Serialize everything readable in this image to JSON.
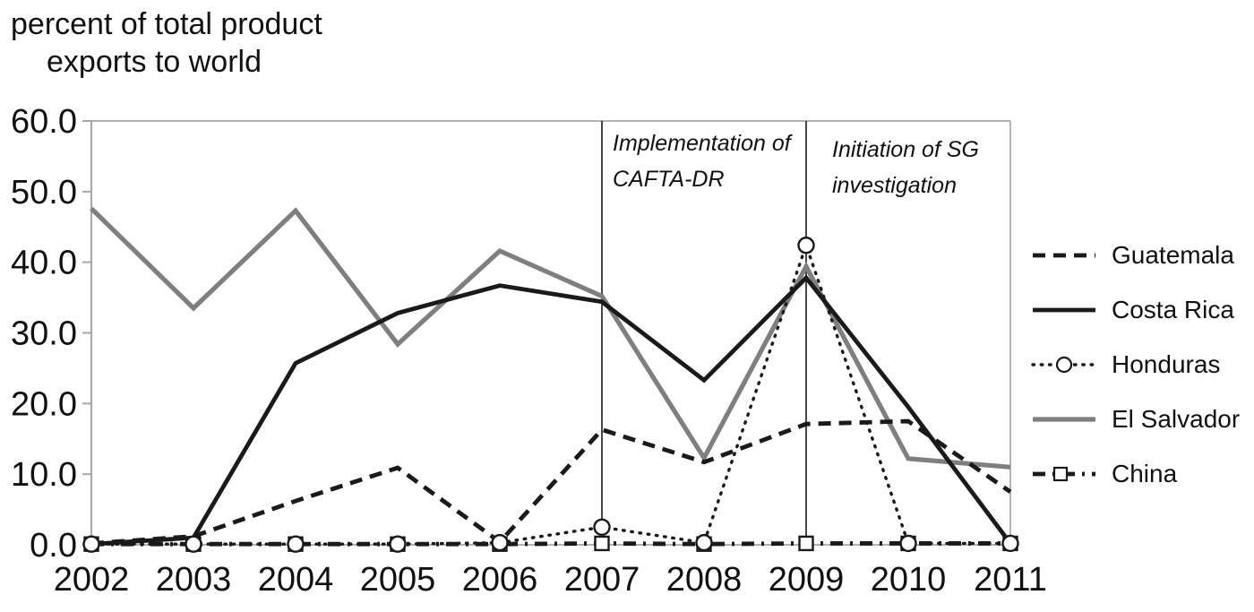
{
  "title": {
    "line1": "percent of total product",
    "line2": "exports to world"
  },
  "chart_data": {
    "type": "line",
    "x": [
      2002,
      2003,
      2004,
      2005,
      2006,
      2007,
      2008,
      2009,
      2010,
      2011
    ],
    "x_labels": [
      "2002",
      "2003",
      "2004",
      "2005",
      "2006",
      "2007",
      "2008",
      "2009",
      "2010",
      "2011"
    ],
    "y_ticks": [
      "0.0",
      "10.0",
      "20.0",
      "30.0",
      "40.0",
      "50.0",
      "60.0"
    ],
    "ylim": [
      0,
      60
    ],
    "grid": false,
    "legend_position": "right",
    "series": [
      {
        "name": "Guatemala",
        "color": "#1a1a1a",
        "style": "dashed",
        "marker": "none",
        "values": [
          0.2,
          1.2,
          6.2,
          10.9,
          0.4,
          16.3,
          11.7,
          17.1,
          17.5,
          7.5
        ]
      },
      {
        "name": "Costa Rica",
        "color": "#1a1a1a",
        "style": "solid",
        "marker": "none",
        "values": [
          0.1,
          1.0,
          25.7,
          32.8,
          36.7,
          34.4,
          23.3,
          37.8,
          19.5,
          0.2
        ]
      },
      {
        "name": "Honduras",
        "color": "#1a1a1a",
        "style": "dotted",
        "marker": "circle",
        "values": [
          0.1,
          0.1,
          0.1,
          0.1,
          0.3,
          2.5,
          0.3,
          42.4,
          0.2,
          0.2
        ]
      },
      {
        "name": "El Salvador",
        "color": "#7f7f7f",
        "style": "solid",
        "marker": "none",
        "values": [
          47.6,
          33.5,
          47.3,
          28.4,
          41.6,
          35.2,
          12.3,
          39.4,
          12.2,
          11.0
        ]
      },
      {
        "name": "China",
        "color": "#1a1a1a",
        "style": "dashdot",
        "marker": "square",
        "values": [
          0.1,
          0.1,
          0.1,
          0.1,
          0.1,
          0.2,
          0.1,
          0.2,
          0.2,
          0.2
        ]
      }
    ],
    "annotations": [
      {
        "text": "Implementation of\nCAFTA-DR",
        "x_year": 2007
      },
      {
        "text": "Initiation of SG\ninvestigation",
        "x_year": 2009
      }
    ]
  },
  "colors": {
    "line_black": "#1a1a1a",
    "line_gray": "#7f7f7f",
    "axis_gray": "#a6a6a6",
    "border_gray": "#b3b3b3",
    "text": "#111111"
  }
}
